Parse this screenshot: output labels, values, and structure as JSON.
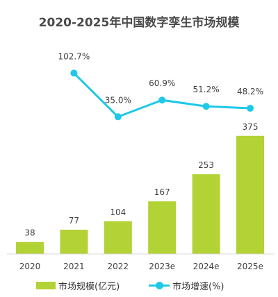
{
  "chart_data": {
    "type": "bar+line",
    "title": "2020-2025年中国数字孪生市场规模",
    "categories": [
      "2020",
      "2021",
      "2022",
      "2023e",
      "2024e",
      "2025e"
    ],
    "series": [
      {
        "name": "市场规模(亿元)",
        "type": "bar",
        "values": [
          38,
          77,
          104,
          167,
          253,
          375
        ],
        "labels": [
          "38",
          "77",
          "104",
          "167",
          "253",
          "375"
        ],
        "color": "#b2d235"
      },
      {
        "name": "市场增速(%)",
        "type": "line",
        "values": [
          null,
          102.7,
          35.0,
          60.9,
          51.2,
          48.2
        ],
        "labels": [
          "",
          "102.7%",
          "35.0%",
          "60.9%",
          "51.2%",
          "48.2%"
        ],
        "color": "#1ec8e8"
      }
    ],
    "legend_position": "bottom",
    "grid": false
  }
}
